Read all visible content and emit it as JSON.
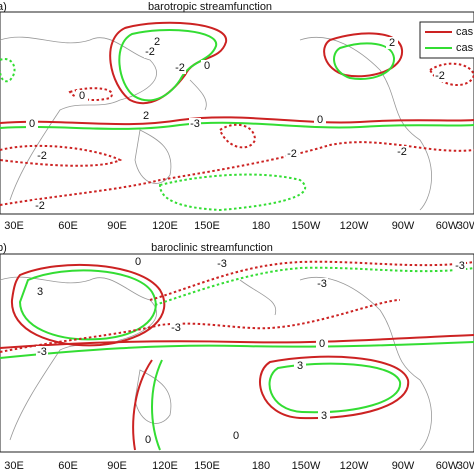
{
  "panels": [
    {
      "label": "a)",
      "title": "barotropic streamfunction",
      "xticks": [
        "30E",
        "60E",
        "90E",
        "120E",
        "150E",
        "180",
        "150W",
        "120W",
        "90W",
        "60W",
        "30W"
      ],
      "contour_labels": [
        "2",
        "-2",
        "-2",
        "0",
        "0",
        "2",
        "-3",
        "0",
        "-2",
        "-2",
        "-2",
        "-2",
        "2",
        "-2",
        "0"
      ],
      "legend": [
        "cas",
        "cas"
      ]
    },
    {
      "label": "b)",
      "title": "baroclinic streamfunction",
      "xticks": [
        "30E",
        "60E",
        "90E",
        "120E",
        "150E",
        "180",
        "150W",
        "120W",
        "90W",
        "60W",
        "30W"
      ],
      "contour_labels": [
        "0",
        "-3",
        "3",
        "-3",
        "-3",
        "-3",
        "-3",
        "0",
        "3",
        "3",
        "0",
        "0"
      ]
    }
  ]
}
